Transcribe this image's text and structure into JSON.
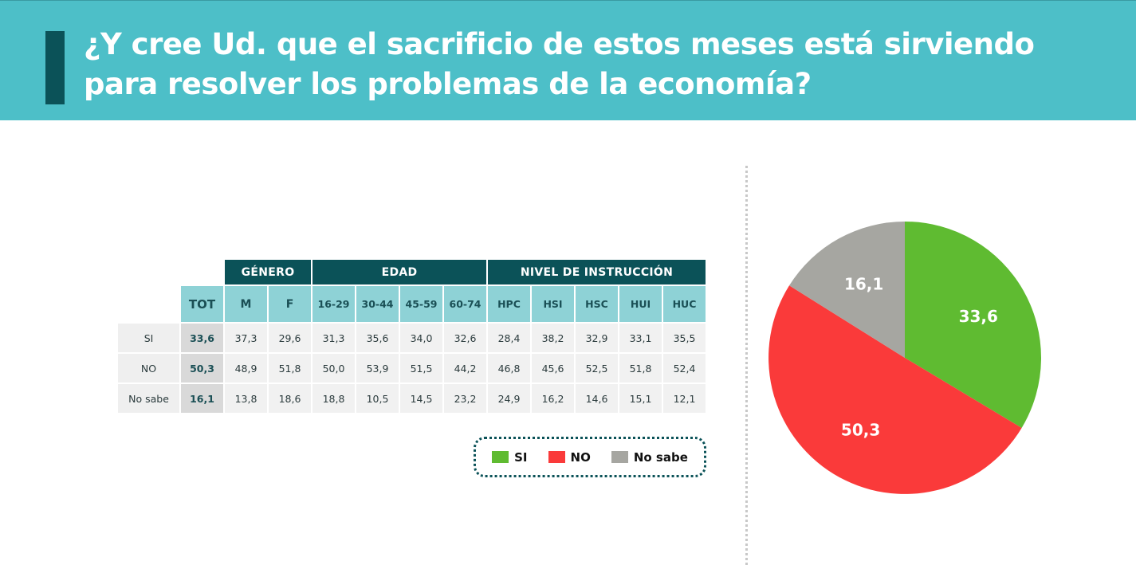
{
  "title": "¿Y cree Ud. que el sacrificio de estos meses está sirviendo para resolver los problemas de la economía?",
  "table": {
    "groups": {
      "genero": "GÉNERO",
      "edad": "EDAD",
      "nivel": "NIVEL DE INSTRUCCIÓN"
    },
    "columns": [
      "TOT",
      "M",
      "F",
      "16-29",
      "30-44",
      "45-59",
      "60-74",
      "HPC",
      "HSI",
      "HSC",
      "HUI",
      "HUC"
    ],
    "rows": [
      {
        "label": "SI",
        "values": [
          "33,6",
          "37,3",
          "29,6",
          "31,3",
          "35,6",
          "34,0",
          "32,6",
          "28,4",
          "38,2",
          "32,9",
          "33,1",
          "35,5"
        ]
      },
      {
        "label": "NO",
        "values": [
          "50,3",
          "48,9",
          "51,8",
          "50,0",
          "53,9",
          "51,5",
          "44,2",
          "46,8",
          "45,6",
          "52,5",
          "51,8",
          "52,4"
        ]
      },
      {
        "label": "No sabe",
        "values": [
          "16,1",
          "13,8",
          "18,6",
          "18,8",
          "10,5",
          "14,5",
          "23,2",
          "24,9",
          "16,2",
          "14,6",
          "15,1",
          "12,1"
        ]
      }
    ]
  },
  "legend": [
    {
      "label": "SI",
      "color": "#5fbb31"
    },
    {
      "label": "NO",
      "color": "#fa3a3a"
    },
    {
      "label": "No sabe",
      "color": "#a6a6a1"
    }
  ],
  "chart_data": {
    "type": "pie",
    "categories": [
      "SI",
      "NO",
      "No sabe"
    ],
    "values": [
      33.6,
      50.3,
      16.1
    ],
    "labels": [
      "33,6",
      "50,3",
      "16,1"
    ],
    "colors": [
      "#5fbb31",
      "#fa3a3a",
      "#a6a6a1"
    ],
    "title": ""
  }
}
